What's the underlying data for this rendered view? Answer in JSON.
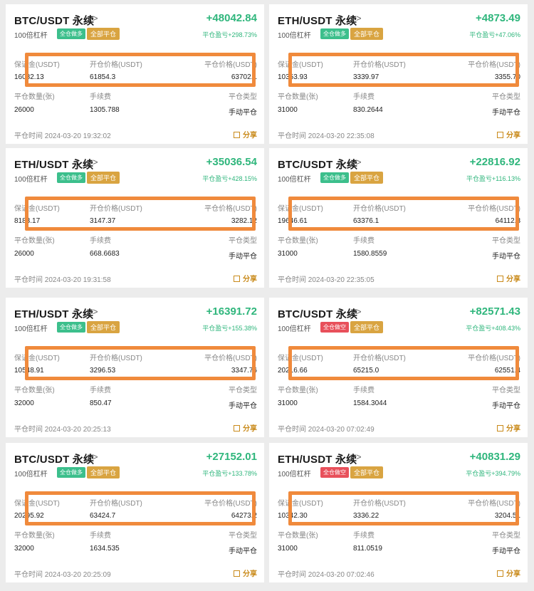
{
  "labels": {
    "leverage": "100倍杠杆",
    "full_close_tag": "全部平仓",
    "pnl_prefix": "平仓盈亏",
    "margin_header": "保证金(USDT)",
    "open_price_header": "开仓价格(USDT)",
    "close_price_header": "平仓价格(USDT)",
    "close_qty_header": "平仓数量(张)",
    "fee_header": "手续费",
    "close_type_header": "平仓类型",
    "close_time_label": "平仓时间",
    "share": "分享"
  },
  "colors": {
    "profit": "#2fb67c",
    "long_tag": "#3cbf8c",
    "short_tag": "#e8505b",
    "close_tag": "#d9a441",
    "highlight_box": "#f08a3c"
  },
  "trades": [
    {
      "pair": "BTC/USDT 永续",
      "side": "全仓做多",
      "side_type": "long",
      "pnl": "+48042.84",
      "pnl_pct": "平仓盈亏+298.73%",
      "margin": "16082.13",
      "open_price": "61854.3",
      "close_price": "63702.1",
      "qty": "26000",
      "fee": "1305.788",
      "close_type": "手动平仓",
      "close_time": "平仓时间 2024-03-20 19:32:02"
    },
    {
      "pair": "ETH/USDT 永续",
      "side": "全仓做多",
      "side_type": "long",
      "pnl": "+4873.49",
      "pnl_pct": "平仓盈亏+47.06%",
      "margin": "10353.93",
      "open_price": "3339.97",
      "close_price": "3355.70",
      "qty": "31000",
      "fee": "830.2644",
      "close_type": "手动平仓",
      "close_time": "平仓时间 2024-03-20 22:35:08"
    },
    {
      "pair": "ETH/USDT 永续",
      "side": "全仓做多",
      "side_type": "long",
      "pnl": "+35036.54",
      "pnl_pct": "平仓盈亏+428.15%",
      "margin": "8183.17",
      "open_price": "3147.37",
      "close_price": "3282.12",
      "qty": "26000",
      "fee": "668.6683",
      "close_type": "手动平仓",
      "close_time": "平仓时间 2024-03-20 19:31:58"
    },
    {
      "pair": "BTC/USDT 永续",
      "side": "全仓做多",
      "side_type": "long",
      "pnl": "+22816.92",
      "pnl_pct": "平仓盈亏+116.13%",
      "margin": "19646.61",
      "open_price": "63376.1",
      "close_price": "64112.3",
      "qty": "31000",
      "fee": "1580.8559",
      "close_type": "手动平仓",
      "close_time": "平仓时间 2024-03-20 22:35:05"
    },
    {
      "pair": "ETH/USDT 永续",
      "side": "全仓做多",
      "side_type": "long",
      "pnl": "+16391.72",
      "pnl_pct": "平仓盈亏+155.38%",
      "margin": "10548.91",
      "open_price": "3296.53",
      "close_price": "3347.76",
      "qty": "32000",
      "fee": "850.47",
      "close_type": "手动平仓",
      "close_time": "平仓时间 2024-03-20 20:25:13"
    },
    {
      "pair": "BTC/USDT 永续",
      "side": "全仓做空",
      "side_type": "short",
      "pnl": "+82571.43",
      "pnl_pct": "平仓盈亏+408.43%",
      "margin": "20216.66",
      "open_price": "65215.0",
      "close_price": "62551.4",
      "qty": "31000",
      "fee": "1584.3044",
      "close_type": "手动平仓",
      "close_time": "平仓时间 2024-03-20 07:02:49"
    },
    {
      "pair": "BTC/USDT 永续",
      "side": "全仓做多",
      "side_type": "long",
      "pnl": "+27152.01",
      "pnl_pct": "平仓盈亏+133.78%",
      "margin": "20295.92",
      "open_price": "63424.7",
      "close_price": "64273.2",
      "qty": "32000",
      "fee": "1634.535",
      "close_type": "手动平仓",
      "close_time": "平仓时间 2024-03-20 20:25:09"
    },
    {
      "pair": "ETH/USDT 永续",
      "side": "全仓做空",
      "side_type": "short",
      "pnl": "+40831.29",
      "pnl_pct": "平仓盈亏+394.79%",
      "margin": "10342.30",
      "open_price": "3336.22",
      "close_price": "3204.51",
      "qty": "31000",
      "fee": "811.0519",
      "close_type": "手动平仓",
      "close_time": "平仓时间 2024-03-20 07:02:46"
    }
  ]
}
